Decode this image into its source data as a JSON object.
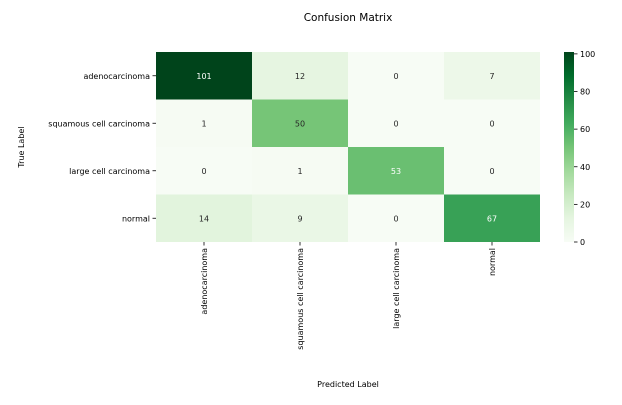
{
  "chart_data": {
    "type": "heatmap",
    "title": "Confusion Matrix",
    "xlabel": "Predicted Label",
    "ylabel": "True Label",
    "row_labels": [
      "adenocarcinoma",
      "squamous cell carcinoma",
      "large cell carcinoma",
      "normal"
    ],
    "col_labels": [
      "adenocarcinoma",
      "squamous cell carcinoma",
      "large cell carcinoma",
      "normal"
    ],
    "values": [
      [
        101,
        12,
        0,
        7
      ],
      [
        1,
        50,
        0,
        0
      ],
      [
        0,
        1,
        53,
        0
      ],
      [
        14,
        9,
        0,
        67
      ]
    ],
    "colorbar": {
      "min": 0,
      "max": 101,
      "ticks": [
        0,
        20,
        40,
        60,
        80,
        100
      ]
    },
    "colormap": "Greens",
    "colors": {
      "low": "#f7fcf5",
      "high": "#00441b"
    }
  }
}
